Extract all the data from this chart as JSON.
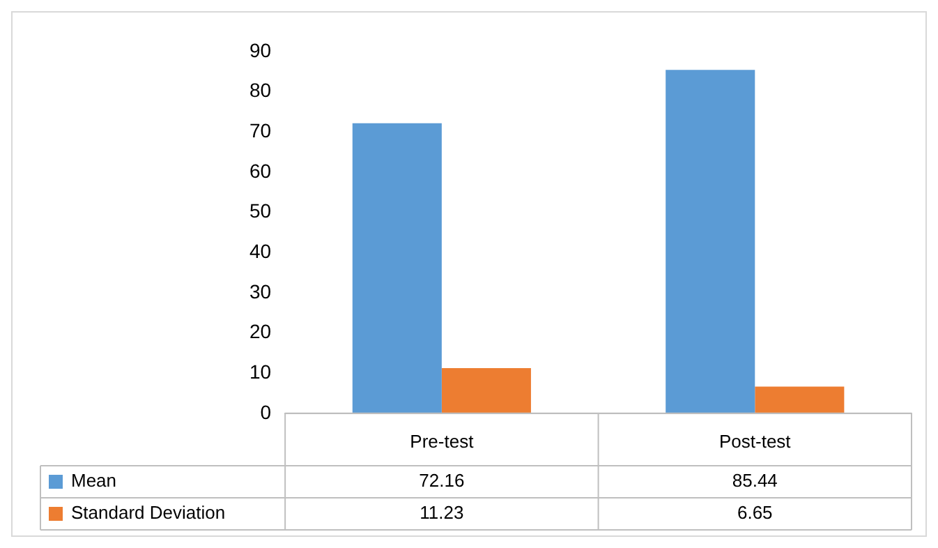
{
  "chart_data": {
    "type": "bar",
    "categories": [
      "Pre-test",
      "Post-test"
    ],
    "series": [
      {
        "name": "Mean",
        "color": "#5b9bd5",
        "values": [
          72.16,
          85.44
        ]
      },
      {
        "name": "Standard Deviation",
        "color": "#ed7d31",
        "values": [
          11.23,
          6.65
        ]
      }
    ],
    "ylim": [
      0,
      90
    ],
    "yticks": [
      0,
      10,
      20,
      30,
      40,
      50,
      60,
      70,
      80,
      90
    ],
    "grid": false,
    "legend": "bottom",
    "data_labels": true
  }
}
